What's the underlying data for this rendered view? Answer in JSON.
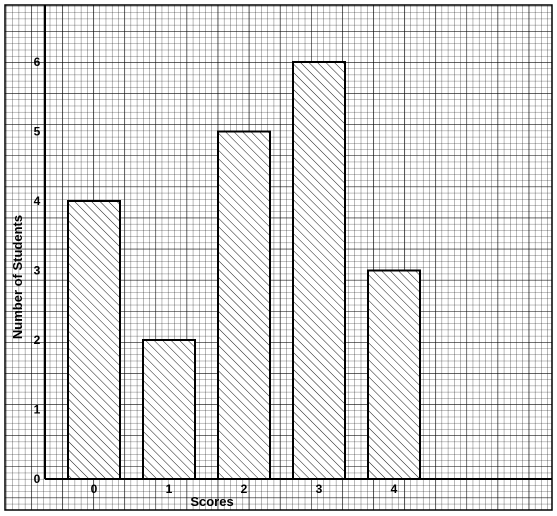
{
  "chart_data": {
    "type": "bar",
    "title": "",
    "xlabel": "Scores",
    "ylabel": "Number of Students",
    "categories": [
      "0",
      "1",
      "2",
      "3",
      "4"
    ],
    "values": [
      4,
      2,
      5,
      6,
      3
    ],
    "ylim": [
      0,
      6.5
    ],
    "yticks": [
      "0",
      "1",
      "2",
      "3",
      "4",
      "5",
      "6"
    ],
    "grid": true,
    "bar_fill": "hatched",
    "colors": {
      "grid": "#000000",
      "bar_stroke": "#000000",
      "hatch": "#000000",
      "background": "#ffffff"
    }
  }
}
